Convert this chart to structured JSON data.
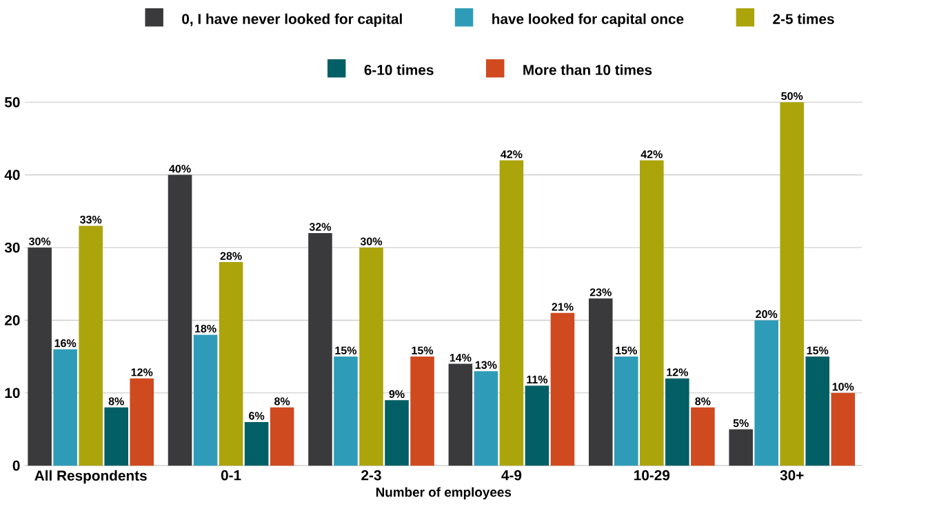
{
  "chart_data": {
    "type": "bar",
    "xlabel": "Number of employees",
    "categories": [
      "All Respondents",
      "0-1",
      "2-3",
      "4-9",
      "10-29",
      "30+"
    ],
    "series": [
      {
        "name": "0, I have never looked for capital",
        "color": "#3a3a3c",
        "values": [
          30,
          40,
          32,
          14,
          23,
          5
        ],
        "value_labels": [
          "30%",
          "40%",
          "32%",
          "14%",
          "23%",
          "5%"
        ]
      },
      {
        "name": "have looked for capital once",
        "color": "#2e9cb8",
        "values": [
          16,
          18,
          15,
          13,
          15,
          20
        ],
        "value_labels": [
          "16%",
          "18%",
          "15%",
          "13%",
          "15%",
          "20%"
        ]
      },
      {
        "name": "2-5 times",
        "color": "#aca40b",
        "values": [
          33,
          28,
          30,
          42,
          42,
          50
        ],
        "value_labels": [
          "33%",
          "28%",
          "30%",
          "42%",
          "42%",
          "50%"
        ]
      },
      {
        "name": "6-10 times",
        "color": "#025f66",
        "values": [
          8,
          6,
          9,
          11,
          12,
          15
        ],
        "value_labels": [
          "8%",
          "6%",
          "9%",
          "11%",
          "12%",
          "15%"
        ]
      },
      {
        "name": "More than 10 times",
        "color": "#cf4a1f",
        "values": [
          12,
          8,
          15,
          21,
          8,
          10
        ],
        "value_labels": [
          "12%",
          "8%",
          "15%",
          "21%",
          "8%",
          "10%"
        ]
      }
    ],
    "ylim": [
      0,
      50
    ],
    "yticks": [
      0,
      10,
      20,
      30,
      40,
      50
    ],
    "grid": "y",
    "legend": "top"
  }
}
